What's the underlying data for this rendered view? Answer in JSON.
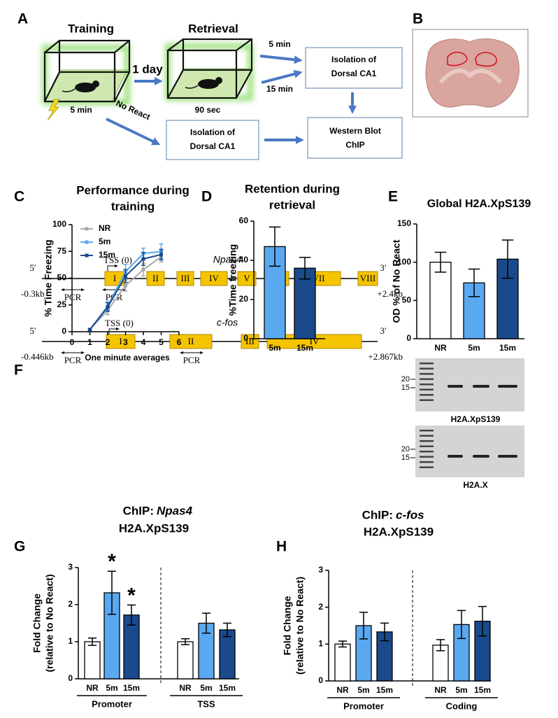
{
  "figure": {
    "panel_labels": [
      "A",
      "B",
      "C",
      "D",
      "E",
      "F",
      "G",
      "H"
    ],
    "schematic": {
      "training": "Training",
      "retrieval": "Retrieval",
      "delay": "1 day",
      "shock": "5 min",
      "retrieval_time": "90 sec",
      "no_react": "No React",
      "early": "5 min",
      "late": "15 min",
      "isolation_top": [
        "Isolation of",
        "Dorsal CA1"
      ],
      "isolation_bottom": [
        "Isolation of",
        "Dorsal CA1"
      ],
      "assay": [
        "Western Blot",
        "ChIP"
      ]
    },
    "gene_maps": [
      {
        "gene": "Npas4",
        "five": "5′",
        "three": "3′",
        "tss": "TSS (0)",
        "start": "-0.3kb",
        "end": "+2.4kb",
        "pcr": [
          "PCR",
          "PCR"
        ],
        "exons": [
          "I",
          "II",
          "III",
          "IV",
          "V",
          "VI",
          "VII",
          "VIII"
        ]
      },
      {
        "gene": "c-fos",
        "five": "5′",
        "three": "3′",
        "tss": "TSS (0)",
        "start": "-0.446kb",
        "end": "+2.867kb",
        "pcr": [
          "PCR",
          "PCR"
        ],
        "exons": [
          "I",
          "II",
          "III",
          "IV"
        ]
      }
    ],
    "blots": [
      {
        "label": "H2A.XpS139",
        "markers": [
          "20",
          "15"
        ]
      },
      {
        "label": "H2A.X",
        "markers": [
          "20",
          "15"
        ]
      }
    ]
  },
  "chart_data": [
    {
      "type": "line",
      "title": [
        "Performance during",
        "training"
      ],
      "xlabel": "One minute averages",
      "ylabel": [
        "% Time Freezing"
      ],
      "x": [
        1,
        2,
        3,
        4,
        5
      ],
      "xlim": [
        0,
        6
      ],
      "xticks": [
        0,
        1,
        2,
        3,
        4,
        5,
        6
      ],
      "ylim": [
        0,
        100
      ],
      "yticks": [
        0,
        25,
        50,
        75,
        100
      ],
      "legend": "upper left",
      "series": [
        {
          "name": "NR",
          "color": "#a8a8a8",
          "values": [
            2,
            20,
            43,
            58,
            70
          ],
          "errors": [
            1,
            4,
            5,
            6,
            5
          ]
        },
        {
          "name": "5m",
          "color": "#5aa9f0",
          "values": [
            2,
            24,
            56,
            73,
            75
          ],
          "errors": [
            1,
            4,
            7,
            5,
            7
          ]
        },
        {
          "name": "15m",
          "color": "#1a4a8c",
          "values": [
            2,
            23,
            52,
            68,
            72
          ],
          "errors": [
            1,
            4,
            6,
            6,
            5
          ]
        }
      ]
    },
    {
      "type": "bar",
      "title": [
        "Retention during",
        "retrieval"
      ],
      "ylabel": [
        "%Time freezing"
      ],
      "categories": [
        "5m",
        "15m"
      ],
      "values": [
        47,
        36
      ],
      "errors": [
        10,
        5.5
      ],
      "colors": [
        "#5aa9f0",
        "#1a4a8c"
      ],
      "ylim": [
        0,
        60
      ],
      "yticks": [
        0,
        20,
        40,
        60
      ]
    },
    {
      "type": "bar",
      "title": [
        "Global H2A.XpS139"
      ],
      "ylabel": [
        "OD % of No React"
      ],
      "categories": [
        "NR",
        "5m",
        "15m"
      ],
      "values": [
        100,
        73,
        104
      ],
      "errors": [
        13,
        18,
        25
      ],
      "colors": [
        "#ffffff",
        "#5aa9f0",
        "#1a4a8c"
      ],
      "ylim": [
        0,
        150
      ],
      "yticks": [
        0,
        50,
        100,
        150
      ]
    },
    {
      "type": "bar",
      "title": "ChIP:",
      "title_gene": "Npas4",
      "subtitle": "H2A.XpS139",
      "ylabel": [
        "Fold Change",
        "(relative to No React)"
      ],
      "categories": [
        "NR",
        "5m",
        "15m",
        "NR",
        "5m",
        "15m"
      ],
      "groups": [
        "Promoter",
        "TSS"
      ],
      "values": [
        1.0,
        2.32,
        1.72,
        1.0,
        1.5,
        1.32
      ],
      "errors": [
        0.1,
        0.58,
        0.27,
        0.08,
        0.27,
        0.18
      ],
      "significance": [
        null,
        "*",
        "*",
        null,
        null,
        null
      ],
      "colors": [
        "#ffffff",
        "#5aa9f0",
        "#1a4a8c",
        "#ffffff",
        "#5aa9f0",
        "#1a4a8c"
      ],
      "ylim": [
        0,
        3
      ],
      "yticks": [
        0,
        1,
        2,
        3
      ]
    },
    {
      "type": "bar",
      "title": "ChIP:",
      "title_gene": "c-fos",
      "subtitle": "H2A.XpS139",
      "ylabel": [
        "Fold Change",
        "(relative to No React)"
      ],
      "categories": [
        "NR",
        "5m",
        "15m",
        "NR",
        "5m",
        "15m"
      ],
      "groups": [
        "Promoter",
        "Coding"
      ],
      "values": [
        1.0,
        1.5,
        1.33,
        0.97,
        1.53,
        1.62
      ],
      "errors": [
        0.08,
        0.36,
        0.24,
        0.15,
        0.38,
        0.4
      ],
      "colors": [
        "#ffffff",
        "#5aa9f0",
        "#1a4a8c",
        "#ffffff",
        "#5aa9f0",
        "#1a4a8c"
      ],
      "ylim": [
        0,
        3
      ],
      "yticks": [
        0,
        1,
        2,
        3
      ]
    }
  ]
}
